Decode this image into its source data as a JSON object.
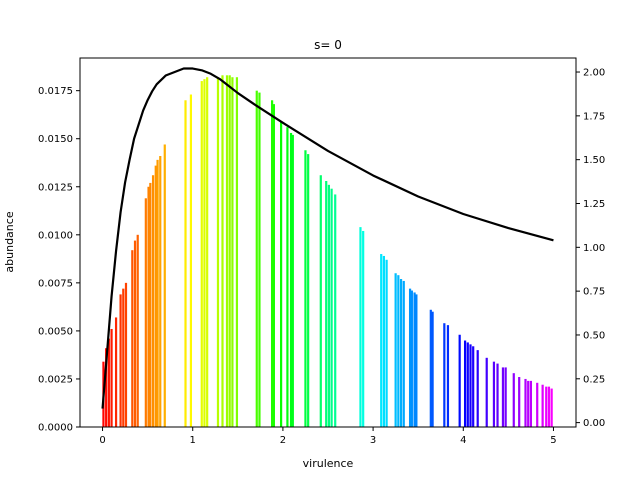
{
  "chart_data": {
    "type": "bar",
    "title": "s= 0",
    "xlabel": "virulence",
    "ylabel": "abundance",
    "ylabel_right": "",
    "xlim": [
      -0.25,
      5.25
    ],
    "ylim": [
      0,
      0.0192
    ],
    "ylim_right": [
      -0.025,
      2.08
    ],
    "x_ticks": [
      0,
      1,
      2,
      3,
      4,
      5
    ],
    "x_tick_labels": [
      "0",
      "1",
      "2",
      "3",
      "4",
      "5"
    ],
    "y_ticks": [
      0,
      0.0025,
      0.005,
      0.0075,
      0.01,
      0.0125,
      0.015,
      0.0175
    ],
    "y_tick_labels": [
      "0.0000",
      "0.0025",
      "0.0050",
      "0.0075",
      "0.0100",
      "0.0125",
      "0.0150",
      "0.0175"
    ],
    "y_right_ticks": [
      0,
      0.25,
      0.5,
      0.75,
      1.0,
      1.25,
      1.5,
      1.75,
      2.0
    ],
    "y_right_tick_labels": [
      "0.00",
      "0.25",
      "0.50",
      "0.75",
      "1.00",
      "1.25",
      "1.50",
      "1.75",
      "2.00"
    ],
    "grid": false,
    "bar_color_scale": "hue by virulence: red → green → cyan → blue → magenta",
    "bars": {
      "x": [
        0.01,
        0.04,
        0.07,
        0.1,
        0.15,
        0.2,
        0.23,
        0.26,
        0.33,
        0.36,
        0.39,
        0.48,
        0.51,
        0.53,
        0.56,
        0.59,
        0.61,
        0.64,
        0.69,
        0.92,
        0.98,
        1.1,
        1.13,
        1.16,
        1.28,
        1.33,
        1.38,
        1.41,
        1.44,
        1.49,
        1.71,
        1.74,
        1.88,
        1.9,
        1.98,
        2.05,
        2.09,
        2.11,
        2.25,
        2.28,
        2.42,
        2.48,
        2.51,
        2.54,
        2.58,
        2.86,
        2.89,
        3.09,
        3.12,
        3.15,
        3.25,
        3.28,
        3.31,
        3.34,
        3.41,
        3.43,
        3.46,
        3.48,
        3.64,
        3.66,
        3.79,
        3.83,
        3.96,
        4.02,
        4.05,
        4.08,
        4.11,
        4.16,
        4.26,
        4.34,
        4.38,
        4.44,
        4.47,
        4.56,
        4.62,
        4.69,
        4.72,
        4.75,
        4.82,
        4.88,
        4.92,
        4.95,
        4.98
      ],
      "values": [
        0.0034,
        0.0041,
        0.0046,
        0.0051,
        0.0057,
        0.0069,
        0.0072,
        0.0075,
        0.0092,
        0.0097,
        0.01,
        0.0119,
        0.0125,
        0.0127,
        0.0131,
        0.0136,
        0.0139,
        0.0141,
        0.0147,
        0.017,
        0.0173,
        0.018,
        0.0181,
        0.0182,
        0.0182,
        0.0183,
        0.0183,
        0.0183,
        0.0182,
        0.0182,
        0.0175,
        0.0174,
        0.017,
        0.0168,
        0.0159,
        0.0156,
        0.0153,
        0.0152,
        0.0144,
        0.0142,
        0.0131,
        0.0128,
        0.0126,
        0.0124,
        0.0121,
        0.0104,
        0.0102,
        0.009,
        0.0089,
        0.0087,
        0.008,
        0.0079,
        0.0077,
        0.0076,
        0.0072,
        0.0071,
        0.007,
        0.0069,
        0.0061,
        0.006,
        0.0054,
        0.0053,
        0.0048,
        0.0045,
        0.0044,
        0.0043,
        0.0042,
        0.004,
        0.0036,
        0.0034,
        0.0033,
        0.0031,
        0.0031,
        0.0028,
        0.0026,
        0.0025,
        0.0024,
        0.0024,
        0.0023,
        0.0022,
        0.0021,
        0.0021,
        0.002
      ]
    },
    "line": {
      "axis": "right",
      "color": "#000000",
      "x": [
        0.0,
        0.05,
        0.1,
        0.15,
        0.2,
        0.25,
        0.3,
        0.35,
        0.4,
        0.45,
        0.5,
        0.55,
        0.6,
        0.7,
        0.8,
        0.9,
        0.95,
        1.0,
        1.1,
        1.2,
        1.3,
        1.4,
        1.5,
        1.7,
        2.0,
        2.5,
        3.0,
        3.5,
        4.0,
        4.5,
        5.0
      ],
      "values": [
        0.08,
        0.4,
        0.72,
        0.98,
        1.2,
        1.37,
        1.5,
        1.62,
        1.7,
        1.78,
        1.84,
        1.89,
        1.93,
        1.98,
        2.0,
        2.02,
        2.02,
        2.02,
        2.01,
        1.99,
        1.96,
        1.92,
        1.88,
        1.81,
        1.71,
        1.55,
        1.41,
        1.29,
        1.19,
        1.11,
        1.04
      ]
    }
  }
}
